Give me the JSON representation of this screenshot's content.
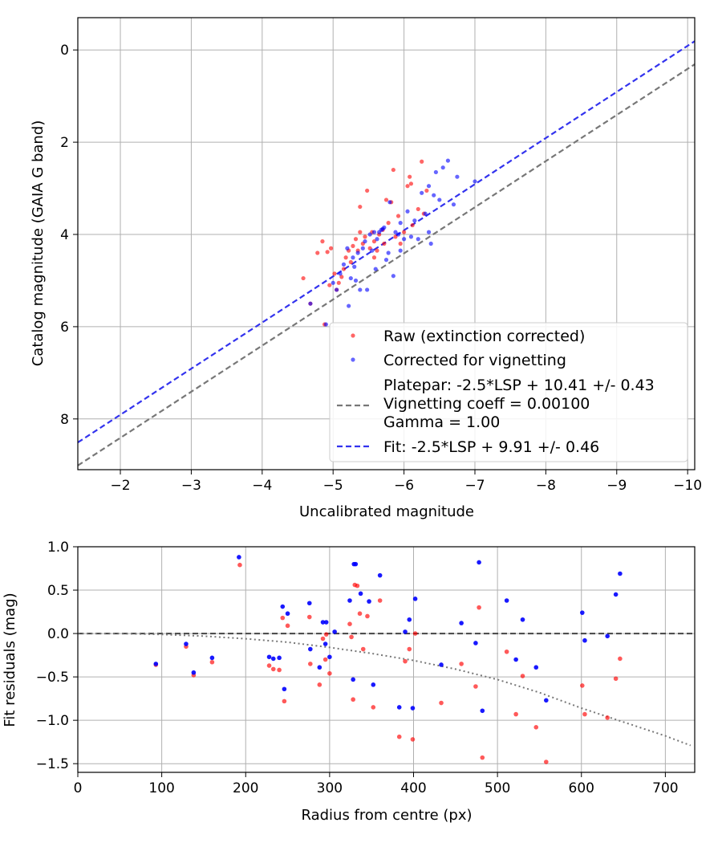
{
  "chart_data": [
    {
      "type": "scatter",
      "xlabel": "Uncalibrated magnitude",
      "ylabel": "Catalog magnitude (GAIA G band)",
      "xlim": [
        -1.4,
        -10.1
      ],
      "ylim": [
        9.1,
        -0.7
      ],
      "x_inverted": true,
      "y_inverted": true,
      "xticks": [
        -2,
        -3,
        -4,
        -5,
        -6,
        -7,
        -8,
        -9,
        -10
      ],
      "xtick_labels": [
        "−2",
        "−3",
        "−4",
        "−5",
        "−6",
        "−7",
        "−8",
        "−9",
        "−10"
      ],
      "yticks": [
        0,
        2,
        4,
        6,
        8
      ],
      "ytick_labels": [
        "0",
        "2",
        "4",
        "6",
        "8"
      ],
      "grid": true,
      "legend_position": "lower-right",
      "legend": [
        "Raw (extinction corrected)",
        "Corrected for vignetting",
        "Platepar: -2.5*LSP + 10.41 +/- 0.43",
        "Vignetting coeff = 0.00100",
        "Gamma = 1.00",
        "Fit: -2.5*LSP + 9.91 +/- 0.46"
      ],
      "colors": {
        "raw": "#ff0000",
        "corrected": "#0000ff",
        "platepar": "#777777",
        "fit": "#3333ee"
      },
      "lines": [
        {
          "name": "Platepar",
          "intercept": 10.41,
          "slope": 1.0,
          "style": "dashed",
          "color": "#777777"
        },
        {
          "name": "Fit",
          "intercept": 9.91,
          "slope": 1.0,
          "style": "dashed",
          "color": "#3333ee"
        }
      ],
      "series": [
        {
          "name": "Raw (extinction corrected)",
          "points": [
            [
              -4.58,
              4.95
            ],
            [
              -4.78,
              4.4
            ],
            [
              -4.85,
              4.15
            ],
            [
              -4.92,
              4.38
            ],
            [
              -4.97,
              4.3
            ],
            [
              -5.02,
              4.85
            ],
            [
              -5.05,
              5.2
            ],
            [
              -5.08,
              5.05
            ],
            [
              -5.12,
              4.92
            ],
            [
              -5.15,
              4.75
            ],
            [
              -5.18,
              4.5
            ],
            [
              -5.22,
              4.35
            ],
            [
              -5.25,
              4.6
            ],
            [
              -5.28,
              4.25
            ],
            [
              -5.32,
              4.1
            ],
            [
              -5.35,
              4.35
            ],
            [
              -5.38,
              3.95
            ],
            [
              -5.42,
              4.2
            ],
            [
              -5.45,
              4.05
            ],
            [
              -5.48,
              3.05
            ],
            [
              -5.52,
              4.3
            ],
            [
              -5.55,
              3.95
            ],
            [
              -5.58,
              4.15
            ],
            [
              -5.62,
              4.35
            ],
            [
              -5.65,
              4.0
            ],
            [
              -5.7,
              3.9
            ],
            [
              -5.72,
              4.2
            ],
            [
              -5.75,
              3.25
            ],
            [
              -5.78,
              3.75
            ],
            [
              -5.82,
              3.3
            ],
            [
              -5.85,
              2.6
            ],
            [
              -5.88,
              4.05
            ],
            [
              -5.92,
              3.6
            ],
            [
              -5.95,
              4.2
            ],
            [
              -6.0,
              3.95
            ],
            [
              -6.05,
              2.95
            ],
            [
              -6.08,
              2.75
            ],
            [
              -6.1,
              2.9
            ],
            [
              -6.12,
              3.8
            ],
            [
              -6.2,
              3.45
            ],
            [
              -6.25,
              2.42
            ],
            [
              -6.32,
              3.05
            ],
            [
              -4.68,
              5.5
            ],
            [
              -4.88,
              5.95
            ],
            [
              -5.38,
              3.4
            ],
            [
              -4.95,
              5.1
            ],
            [
              -5.58,
              4.5
            ],
            [
              -6.28,
              3.55
            ]
          ]
        },
        {
          "name": "Corrected for vignetting",
          "points": [
            [
              -4.68,
              5.5
            ],
            [
              -4.9,
              5.95
            ],
            [
              -5.0,
              5.05
            ],
            [
              -5.05,
              5.2
            ],
            [
              -5.1,
              4.85
            ],
            [
              -5.15,
              4.65
            ],
            [
              -5.2,
              4.3
            ],
            [
              -5.22,
              5.55
            ],
            [
              -5.25,
              4.95
            ],
            [
              -5.28,
              4.5
            ],
            [
              -5.32,
              5.0
            ],
            [
              -5.35,
              4.4
            ],
            [
              -5.38,
              5.2
            ],
            [
              -5.42,
              4.3
            ],
            [
              -5.45,
              4.15
            ],
            [
              -5.48,
              5.2
            ],
            [
              -5.52,
              4.0
            ],
            [
              -5.55,
              4.35
            ],
            [
              -5.58,
              3.95
            ],
            [
              -5.62,
              4.1
            ],
            [
              -5.65,
              3.95
            ],
            [
              -5.68,
              3.9
            ],
            [
              -5.7,
              3.88
            ],
            [
              -5.72,
              3.85
            ],
            [
              -5.75,
              4.55
            ],
            [
              -5.78,
              4.4
            ],
            [
              -5.8,
              3.3
            ],
            [
              -5.85,
              4.9
            ],
            [
              -5.88,
              3.95
            ],
            [
              -5.92,
              4.0
            ],
            [
              -5.95,
              3.75
            ],
            [
              -6.0,
              4.1
            ],
            [
              -6.05,
              3.5
            ],
            [
              -6.1,
              4.05
            ],
            [
              -6.15,
              3.7
            ],
            [
              -6.2,
              4.1
            ],
            [
              -6.25,
              3.1
            ],
            [
              -6.3,
              3.55
            ],
            [
              -6.35,
              2.95
            ],
            [
              -6.38,
              4.2
            ],
            [
              -6.42,
              3.15
            ],
            [
              -6.45,
              2.65
            ],
            [
              -6.5,
              3.25
            ],
            [
              -6.55,
              2.55
            ],
            [
              -6.62,
              2.4
            ],
            [
              -6.7,
              3.35
            ],
            [
              -6.75,
              2.75
            ],
            [
              -7.0,
              2.85
            ],
            [
              -5.6,
              4.75
            ],
            [
              -5.3,
              4.7
            ],
            [
              -6.35,
              3.95
            ],
            [
              -5.95,
              4.35
            ]
          ]
        }
      ]
    },
    {
      "type": "scatter",
      "xlabel": "Radius from centre (px)",
      "ylabel": "Fit residuals (mag)",
      "xlim": [
        0,
        735
      ],
      "ylim": [
        -1.6,
        1.0
      ],
      "xticks": [
        0,
        100,
        200,
        300,
        400,
        500,
        600,
        700
      ],
      "xtick_labels": [
        "0",
        "100",
        "200",
        "300",
        "400",
        "500",
        "600",
        "700"
      ],
      "yticks": [
        1.0,
        0.5,
        0.0,
        -0.5,
        -1.0,
        -1.5
      ],
      "ytick_labels": [
        "1.0",
        "0.5",
        "0.0",
        "−0.5",
        "−1.0",
        "−1.5"
      ],
      "grid": true,
      "colors": {
        "raw": "#ff0000",
        "corrected": "#0000ff"
      },
      "reference_line": {
        "y": 0.0,
        "style": "dashed",
        "color": "#444444"
      },
      "vignetting_curve": {
        "style": "dotted",
        "color": "#777777",
        "x": [
          0,
          50,
          100,
          150,
          200,
          250,
          300,
          350,
          400,
          450,
          500,
          550,
          600,
          650,
          700,
          730
        ],
        "y": [
          0.0,
          0.0,
          -0.01,
          -0.03,
          -0.06,
          -0.1,
          -0.16,
          -0.23,
          -0.31,
          -0.41,
          -0.53,
          -0.68,
          -0.86,
          -1.02,
          -1.18,
          -1.29
        ]
      },
      "series": [
        {
          "name": "Raw (extinction corrected)",
          "points": [
            [
              93,
              -0.36
            ],
            [
              129,
              -0.15
            ],
            [
              138,
              -0.48
            ],
            [
              160,
              -0.33
            ],
            [
              193,
              0.79
            ],
            [
              228,
              -0.37
            ],
            [
              233,
              -0.41
            ],
            [
              240,
              -0.42
            ],
            [
              244,
              0.18
            ],
            [
              246,
              -0.78
            ],
            [
              250,
              0.09
            ],
            [
              276,
              0.19
            ],
            [
              277,
              -0.35
            ],
            [
              288,
              -0.59
            ],
            [
              292,
              -0.06
            ],
            [
              295,
              -0.3
            ],
            [
              296,
              -0.01
            ],
            [
              300,
              -0.46
            ],
            [
              324,
              0.11
            ],
            [
              326,
              -0.04
            ],
            [
              328,
              -0.76
            ],
            [
              330,
              0.56
            ],
            [
              333,
              0.55
            ],
            [
              336,
              0.23
            ],
            [
              340,
              -0.18
            ],
            [
              345,
              0.2
            ],
            [
              352,
              -0.85
            ],
            [
              360,
              0.38
            ],
            [
              383,
              -1.19
            ],
            [
              390,
              -0.32
            ],
            [
              395,
              -0.18
            ],
            [
              399,
              -1.22
            ],
            [
              402,
              0.0
            ],
            [
              433,
              -0.8
            ],
            [
              457,
              -0.35
            ],
            [
              474,
              -0.61
            ],
            [
              478,
              0.3
            ],
            [
              482,
              -1.43
            ],
            [
              511,
              -0.21
            ],
            [
              522,
              -0.93
            ],
            [
              530,
              -0.49
            ],
            [
              546,
              -1.08
            ],
            [
              558,
              -1.48
            ],
            [
              601,
              -0.6
            ],
            [
              604,
              -0.93
            ],
            [
              631,
              -0.97
            ],
            [
              641,
              -0.52
            ],
            [
              646,
              -0.29
            ]
          ]
        },
        {
          "name": "Corrected for vignetting",
          "points": [
            [
              93,
              -0.35
            ],
            [
              129,
              -0.12
            ],
            [
              138,
              -0.45
            ],
            [
              160,
              -0.28
            ],
            [
              192,
              0.88
            ],
            [
              228,
              -0.27
            ],
            [
              233,
              -0.29
            ],
            [
              240,
              -0.28
            ],
            [
              244,
              0.31
            ],
            [
              246,
              -0.64
            ],
            [
              250,
              0.23
            ],
            [
              276,
              0.35
            ],
            [
              277,
              -0.18
            ],
            [
              288,
              -0.39
            ],
            [
              292,
              0.13
            ],
            [
              295,
              -0.12
            ],
            [
              296,
              0.13
            ],
            [
              300,
              -0.27
            ],
            [
              306,
              0.02
            ],
            [
              324,
              0.38
            ],
            [
              328,
              -0.53
            ],
            [
              329,
              0.8
            ],
            [
              331,
              0.8
            ],
            [
              337,
              0.46
            ],
            [
              347,
              0.37
            ],
            [
              352,
              -0.59
            ],
            [
              360,
              0.67
            ],
            [
              383,
              -0.85
            ],
            [
              390,
              0.02
            ],
            [
              395,
              0.16
            ],
            [
              399,
              -0.86
            ],
            [
              402,
              0.4
            ],
            [
              433,
              -0.36
            ],
            [
              457,
              0.12
            ],
            [
              474,
              -0.11
            ],
            [
              478,
              0.82
            ],
            [
              482,
              -0.89
            ],
            [
              511,
              0.38
            ],
            [
              522,
              -0.3
            ],
            [
              530,
              0.16
            ],
            [
              546,
              -0.39
            ],
            [
              558,
              -0.77
            ],
            [
              601,
              0.24
            ],
            [
              604,
              -0.08
            ],
            [
              631,
              -0.03
            ],
            [
              641,
              0.45
            ],
            [
              646,
              0.69
            ]
          ]
        }
      ]
    }
  ]
}
